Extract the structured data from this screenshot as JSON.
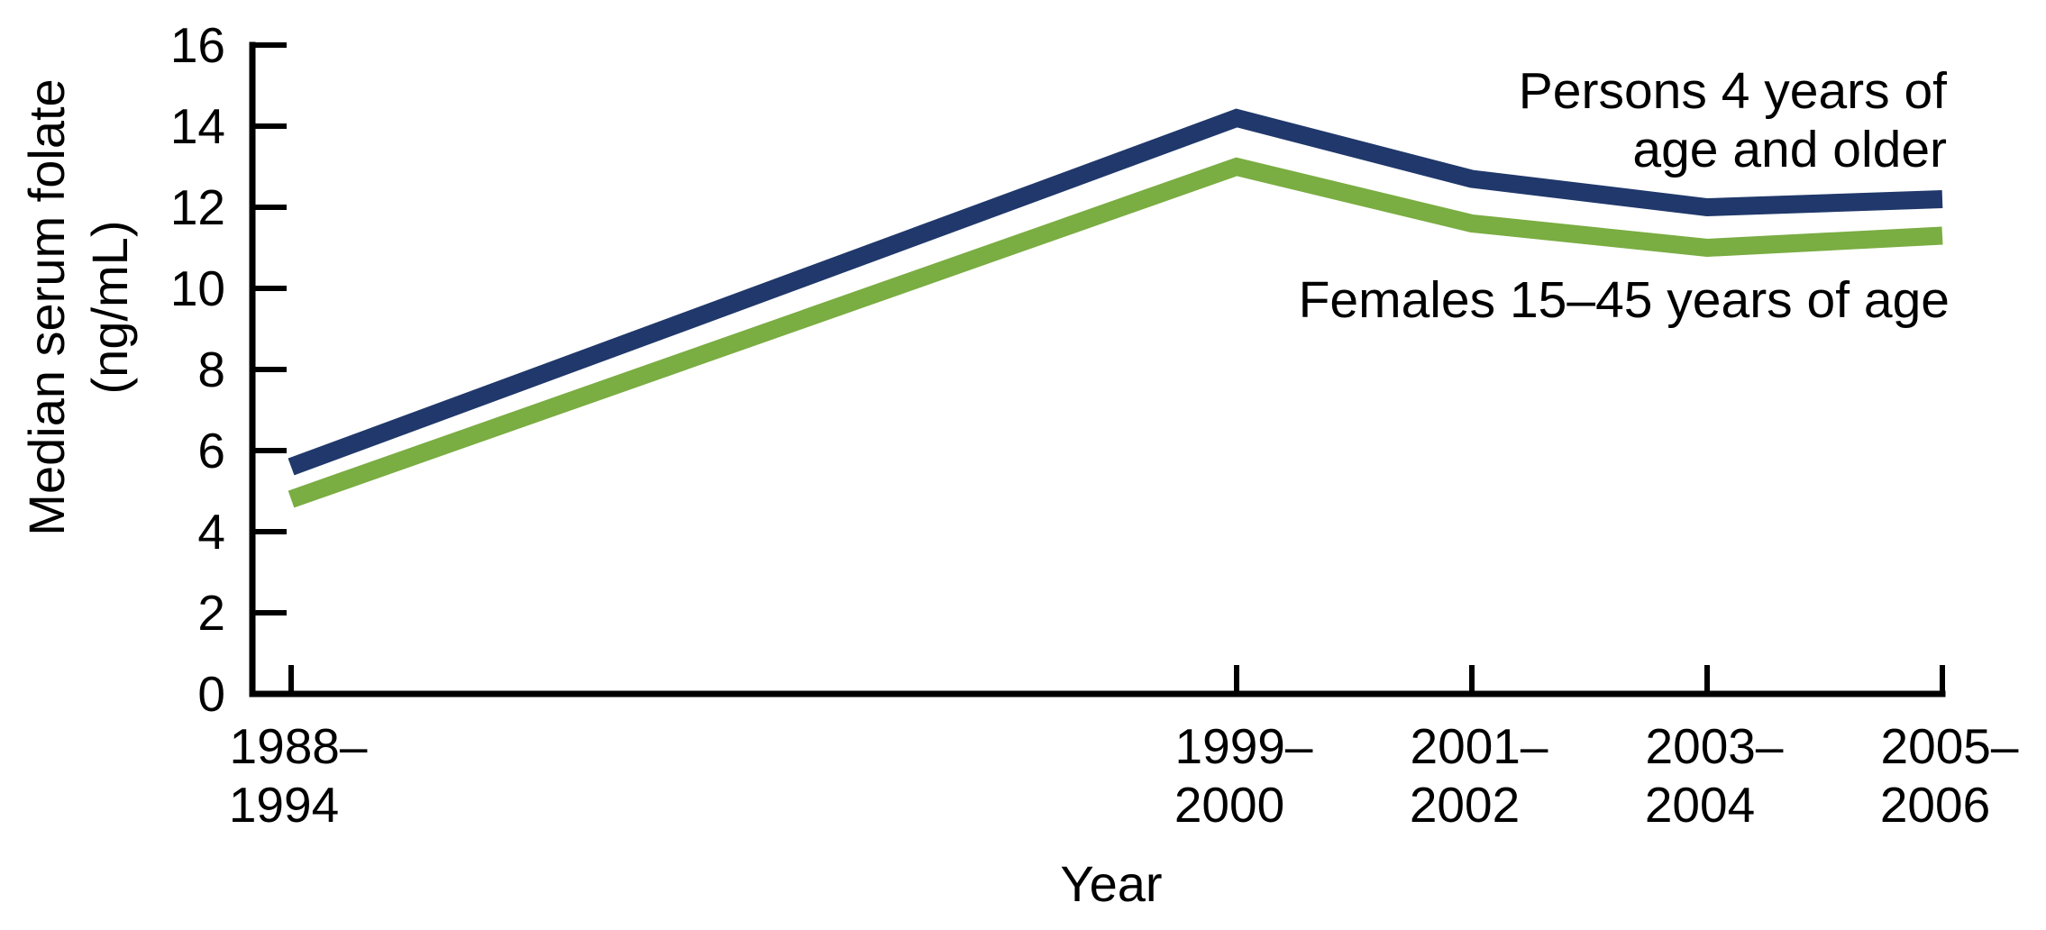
{
  "chart_data": {
    "type": "line",
    "title": "",
    "xlabel": "Year",
    "ylabel": "Median serum folate (ng/mL)",
    "ylabel_lines": [
      "Median serum folate",
      "(ng/mL)"
    ],
    "categories": [
      "1988–1994",
      "1999–2000",
      "2001–2002",
      "2003–2004",
      "2005–2006"
    ],
    "series": [
      {
        "name": "Persons 4 years of age and older",
        "label_lines": [
          "Persons 4 years of",
          "age and older"
        ],
        "color": "#20386b",
        "values": [
          5.6,
          14.2,
          12.7,
          12.0,
          12.2
        ]
      },
      {
        "name": "Females 15–45 years of age",
        "label_lines": [
          "Females 15–45 years of age"
        ],
        "color": "#7aad42",
        "values": [
          4.8,
          13.0,
          11.6,
          11.0,
          11.3
        ]
      }
    ],
    "yticks": [
      0,
      2,
      4,
      6,
      8,
      10,
      12,
      14,
      16
    ],
    "ylim": [
      0,
      16
    ],
    "units": "ng/mL",
    "axis_color": "#000000",
    "text_color": "#000000",
    "background_color": "#ffffff",
    "grid": false,
    "legend_position": "inline-right-of-plot"
  }
}
